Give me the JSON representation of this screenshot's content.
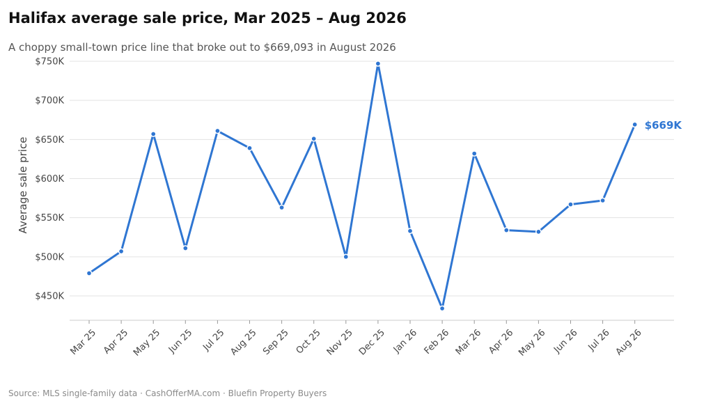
{
  "title": "Halifax average sale price, Mar 2025 – Aug 2026",
  "subtitle": "A choppy small-town price line that broke out to $669,093 in August 2026",
  "source": "Source: MLS single-family data  ·  CashOfferMA.com  ·  Bluefin Property Buyers",
  "colors": {
    "line": "#2F76D2",
    "grid": "#E3E3E3",
    "axis": "#CCCCCC"
  },
  "chart_data": {
    "type": "line",
    "categories": [
      "Mar 25",
      "Apr 25",
      "May 25",
      "Jun 25",
      "Jul 25",
      "Aug 25",
      "Sep 25",
      "Oct 25",
      "Nov 25",
      "Dec 25",
      "Jan 26",
      "Feb 26",
      "Mar 26",
      "Apr 26",
      "May 26",
      "Jun 26",
      "Jul 26",
      "Aug 26"
    ],
    "values": [
      479000,
      507000,
      657000,
      511000,
      661000,
      639000,
      563000,
      651000,
      500000,
      747000,
      533000,
      434000,
      632000,
      534000,
      532000,
      567000,
      572000,
      669093
    ],
    "ylabel": "Average sale price",
    "xlabel": "",
    "ylim": [
      420000,
      750000
    ],
    "yticks": [
      450000,
      500000,
      550000,
      600000,
      650000,
      700000,
      750000
    ],
    "ytick_labels": [
      "$450K",
      "$500K",
      "$550K",
      "$600K",
      "$650K",
      "$700K",
      "$750K"
    ],
    "end_label": "$669K",
    "grid": "horizontal",
    "legend": "none"
  }
}
